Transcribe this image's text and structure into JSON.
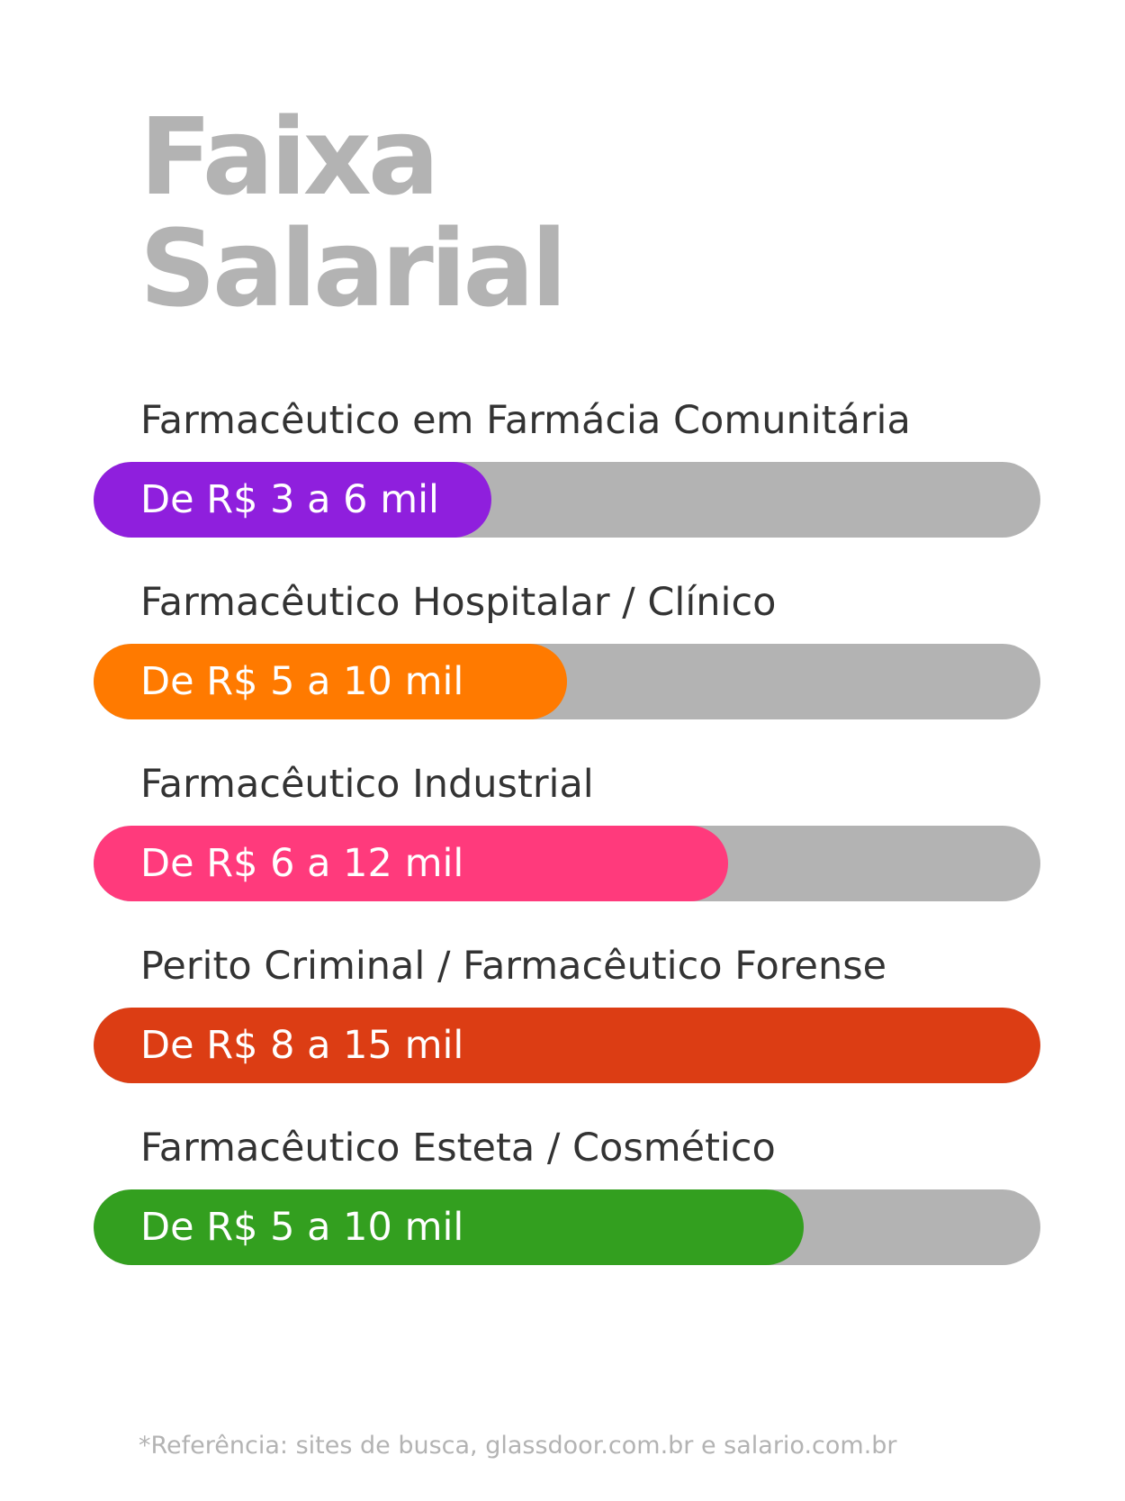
{
  "header": {
    "title_line1": "Faixa",
    "title_line2": "Salarial"
  },
  "footnote": "*Referência: sites de busca, glassdoor.com.br e salario.com.br",
  "colors": {
    "title": "#b3b3b3",
    "track": "#b3b3b3",
    "label_text": "#333333",
    "bar_text": "#ffffff"
  },
  "chart_data": {
    "type": "bar",
    "orientation": "horizontal",
    "categories": [
      "Farmacêutico em Farmácia Comunitária",
      "Farmacêutico Hospitalar / Clínico",
      "Farmacêutico Industrial",
      "Perito Criminal / Farmacêutico Forense",
      "Farmacêutico Esteta / Cosmético"
    ],
    "bar_labels": [
      "De R$ 3 a 6 mil",
      "De R$ 5 a 10 mil",
      "De R$ 6 a 12 mil",
      "De R$ 8 a 15 mil",
      "De R$ 5 a 10 mil"
    ],
    "ranges_thousands_brl": [
      [
        3,
        6
      ],
      [
        5,
        10
      ],
      [
        6,
        12
      ],
      [
        8,
        15
      ],
      [
        5,
        10
      ]
    ],
    "fill_fraction": [
      0.42,
      0.5,
      0.67,
      1.0,
      0.75
    ],
    "colors": [
      "#8f1fdd",
      "#ff7a00",
      "#ff3a7c",
      "#dc3d14",
      "#339f1f"
    ]
  }
}
